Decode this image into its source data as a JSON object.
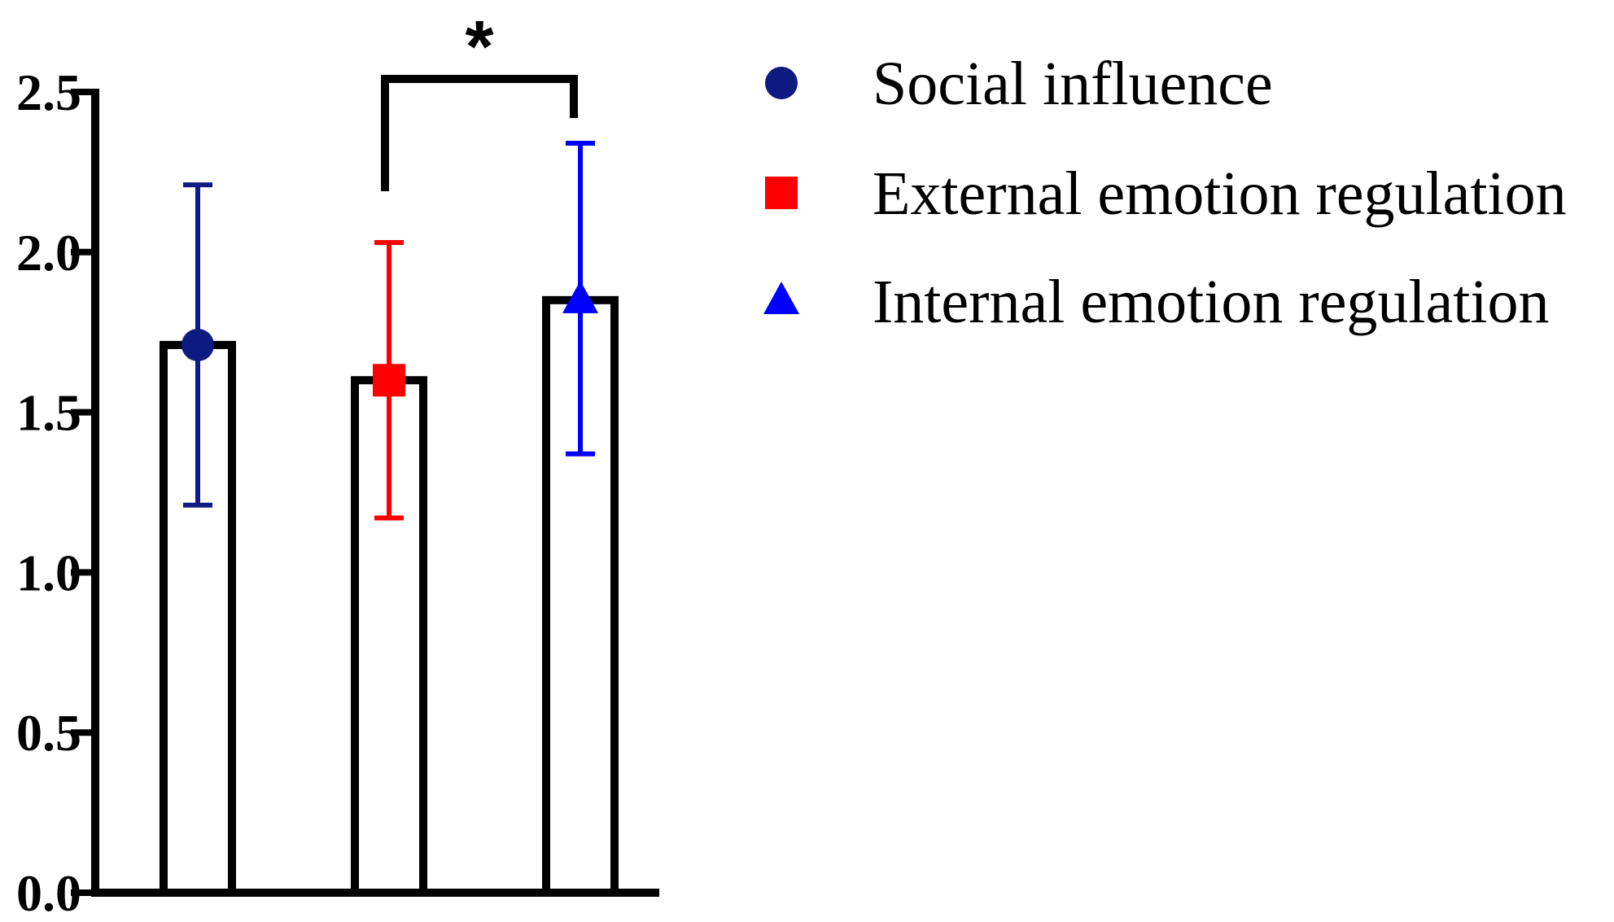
{
  "chart_data": {
    "type": "bar",
    "title": "",
    "xlabel": "",
    "ylabel": "",
    "ylim": [
      0,
      2.5
    ],
    "yticks": [
      0.0,
      0.5,
      1.0,
      1.5,
      2.0,
      2.5
    ],
    "ytick_labels": [
      "0.0",
      "0.5",
      "1.0",
      "1.5",
      "2.0",
      "2.5"
    ],
    "grid": false,
    "legend_position": "right",
    "series": [
      {
        "name": "Social influence",
        "value": 1.71,
        "error_low": 1.21,
        "error_high": 2.21,
        "marker": "circle",
        "color": "#0d1a80"
      },
      {
        "name": "External emotion regulation",
        "value": 1.6,
        "error_low": 1.17,
        "error_high": 2.03,
        "marker": "square",
        "color": "#ff0000"
      },
      {
        "name": "Internal emotion regulation",
        "value": 1.85,
        "error_low": 1.37,
        "error_high": 2.34,
        "marker": "triangle",
        "color": "#0000ff"
      }
    ],
    "significance": {
      "between": [
        1,
        2
      ],
      "label": "*"
    }
  }
}
